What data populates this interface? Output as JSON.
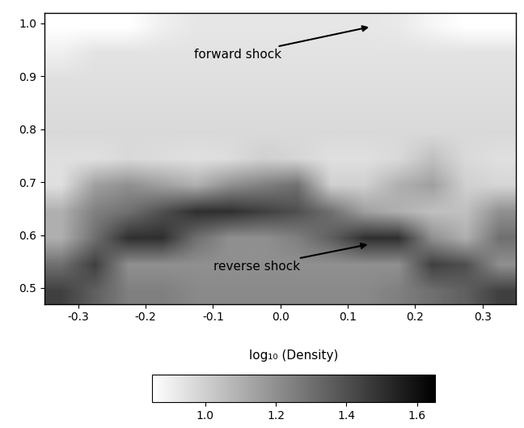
{
  "chart_data": {
    "type": "heatmap",
    "xlim": [
      -0.35,
      0.35
    ],
    "ylim": [
      0.47,
      1.02
    ],
    "xticks": [
      -0.3,
      -0.2,
      -0.1,
      0.0,
      0.1,
      0.2,
      0.3
    ],
    "yticks": [
      0.5,
      0.6,
      0.7,
      0.8,
      0.9,
      1.0
    ],
    "color": "gray_r",
    "cells": [
      [
        1.45,
        1.35,
        1.25,
        1.25,
        1.22,
        1.22,
        1.22,
        1.22,
        1.22,
        1.22,
        1.25,
        1.3,
        1.35,
        1.45
      ],
      [
        1.3,
        1.45,
        1.2,
        1.2,
        1.2,
        1.2,
        1.2,
        1.2,
        1.2,
        1.2,
        1.2,
        1.45,
        1.4,
        1.2
      ],
      [
        1.1,
        1.3,
        1.5,
        1.5,
        1.3,
        1.2,
        1.2,
        1.25,
        1.35,
        1.5,
        1.5,
        1.2,
        1.1,
        1.3
      ],
      [
        1.1,
        1.25,
        1.3,
        1.4,
        1.5,
        1.5,
        1.45,
        1.4,
        1.3,
        1.15,
        1.1,
        1.05,
        1.05,
        1.2
      ],
      [
        0.95,
        1.15,
        1.2,
        1.15,
        1.1,
        1.2,
        1.25,
        1.3,
        1.0,
        1.0,
        1.1,
        1.15,
        1.0,
        0.98
      ],
      [
        0.95,
        0.95,
        0.97,
        0.96,
        0.95,
        0.96,
        1.0,
        0.98,
        0.95,
        0.95,
        0.97,
        1.05,
        0.97,
        0.95
      ],
      [
        0.97,
        0.97,
        0.97,
        0.97,
        0.97,
        0.97,
        0.97,
        0.97,
        0.97,
        0.97,
        0.97,
        0.97,
        0.97,
        0.97
      ],
      [
        0.96,
        0.96,
        0.96,
        0.96,
        0.96,
        0.96,
        0.96,
        0.96,
        0.96,
        0.96,
        0.96,
        0.96,
        0.96,
        0.96
      ],
      [
        0.95,
        0.95,
        0.95,
        0.95,
        0.95,
        0.95,
        0.95,
        0.95,
        0.95,
        0.95,
        0.95,
        0.95,
        0.95,
        0.95
      ],
      [
        0.9,
        0.94,
        0.94,
        0.94,
        0.94,
        0.94,
        0.94,
        0.94,
        0.94,
        0.94,
        0.94,
        0.94,
        0.94,
        0.94
      ],
      [
        0.85,
        0.85,
        0.85,
        0.9,
        0.93,
        0.93,
        0.93,
        0.93,
        0.93,
        0.93,
        0.92,
        0.88,
        0.85,
        0.85
      ]
    ],
    "colorbar": {
      "label": "log₁₀ (Density)",
      "range": [
        0.85,
        1.65
      ],
      "ticks": [
        1.0,
        1.2,
        1.4,
        1.6
      ]
    },
    "annotations": [
      {
        "text": "forward shock",
        "xy": [
          0.135,
          0.994
        ]
      },
      {
        "text": "reverse shock",
        "xy": [
          0.133,
          0.583
        ]
      }
    ]
  }
}
